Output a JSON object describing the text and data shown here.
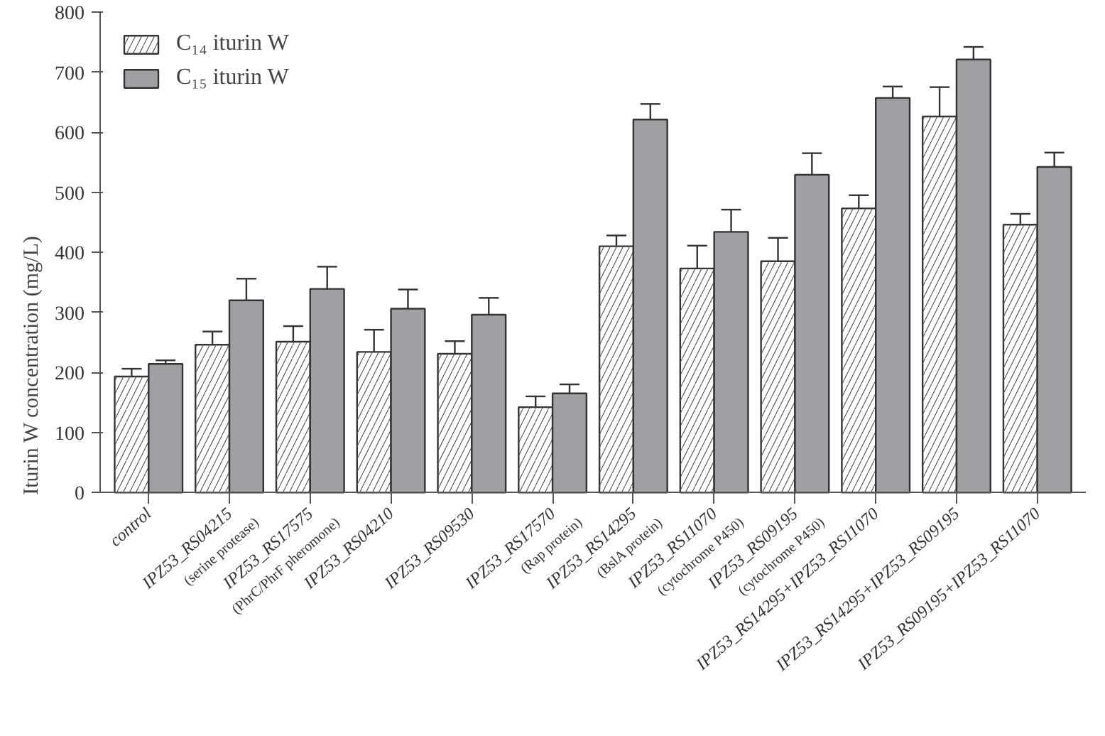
{
  "chart_data": {
    "type": "bar",
    "ylabel": "Iturin W concentration (mg/L)",
    "categories": [
      "control",
      "IPZ53_RS04215\n(serine protease)",
      "IPZ53_RS17575\n(PhrC/PhrF pheromone)",
      "IPZ53_RS04210",
      "IPZ53_RS09530",
      "IPZ53_RS17570\n(Rap protein)",
      "IPZ53_RS14295\n(BslA protein)",
      "IPZ53_RS11070\n(cytochrome P450)",
      "IPZ53_RS09195\n(cytochrome P450)",
      "IPZ53_RS14295+IPZ53_RS11070",
      "IPZ53_RS14295+IPZ53_RS09195",
      "IPZ53_RS09195+IPZ53_RS11070"
    ],
    "series": [
      {
        "name": "C₁₄ iturin W",
        "color": "#ffffff",
        "values": [
          193,
          246,
          251,
          234,
          231,
          142,
          410,
          373,
          385,
          473,
          626,
          446
        ],
        "errors": [
          13,
          22,
          26,
          37,
          21,
          18,
          18,
          38,
          39,
          22,
          49,
          18
        ]
      },
      {
        "name": "C₁₅ iturin W",
        "color": "#a0a0a4",
        "values": [
          214,
          320,
          339,
          306,
          296,
          165,
          621,
          434,
          529,
          657,
          721,
          542
        ],
        "errors": [
          6,
          36,
          37,
          32,
          28,
          15,
          26,
          37,
          36,
          19,
          21,
          24
        ]
      }
    ],
    "ylim": [
      0,
      800
    ],
    "yticks": [
      0,
      100,
      200,
      300,
      400,
      500,
      600,
      700,
      800
    ],
    "grid": false,
    "legend": "top left"
  }
}
